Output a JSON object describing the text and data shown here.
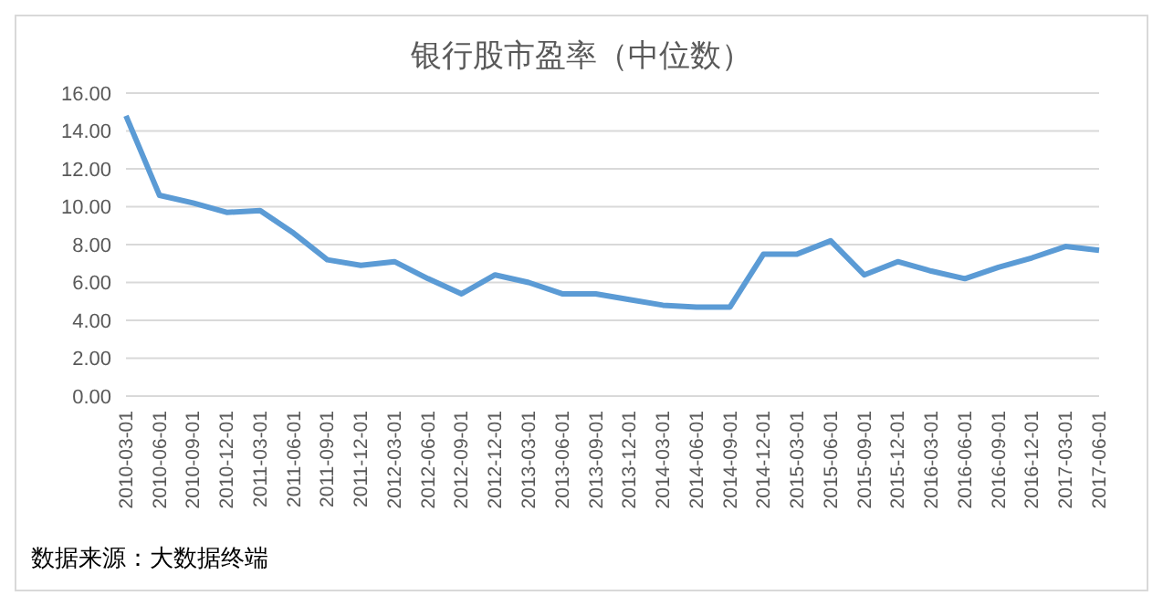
{
  "chart_data": {
    "type": "line",
    "title": "银行股市盈率（中位数）",
    "categories": [
      "2010-03-01",
      "2010-06-01",
      "2010-09-01",
      "2010-12-01",
      "2011-03-01",
      "2011-06-01",
      "2011-09-01",
      "2011-12-01",
      "2012-03-01",
      "2012-06-01",
      "2012-09-01",
      "2012-12-01",
      "2013-03-01",
      "2013-06-01",
      "2013-09-01",
      "2013-12-01",
      "2014-03-01",
      "2014-06-01",
      "2014-09-01",
      "2014-12-01",
      "2015-03-01",
      "2015-06-01",
      "2015-09-01",
      "2015-12-01",
      "2016-03-01",
      "2016-06-01",
      "2016-09-01",
      "2016-12-01",
      "2017-03-01",
      "2017-06-01"
    ],
    "series": [
      {
        "color": "#5b9bd5",
        "values": [
          14.8,
          10.6,
          10.2,
          9.7,
          9.8,
          8.6,
          7.2,
          6.9,
          7.1,
          6.2,
          5.4,
          6.4,
          6.0,
          5.4,
          5.4,
          5.1,
          4.8,
          4.7,
          4.7,
          7.5,
          7.5,
          8.2,
          6.4,
          7.1,
          6.6,
          6.2,
          6.8,
          7.3,
          7.9,
          7.7
        ]
      }
    ],
    "ylim": [
      0,
      16
    ],
    "yticks": [
      {
        "value": 0,
        "label": "0.00"
      },
      {
        "value": 2,
        "label": "2.00"
      },
      {
        "value": 4,
        "label": "4.00"
      },
      {
        "value": 6,
        "label": "6.00"
      },
      {
        "value": 8,
        "label": "8.00"
      },
      {
        "value": 10,
        "label": "10.00"
      },
      {
        "value": 12,
        "label": "12.00"
      },
      {
        "value": 14,
        "label": "14.00"
      },
      {
        "value": 16,
        "label": "16.00"
      }
    ],
    "grid": "y",
    "legend": false,
    "marker": "none",
    "line_style": "solid",
    "annotations": [
      "数据来源：大数据终端"
    ]
  }
}
